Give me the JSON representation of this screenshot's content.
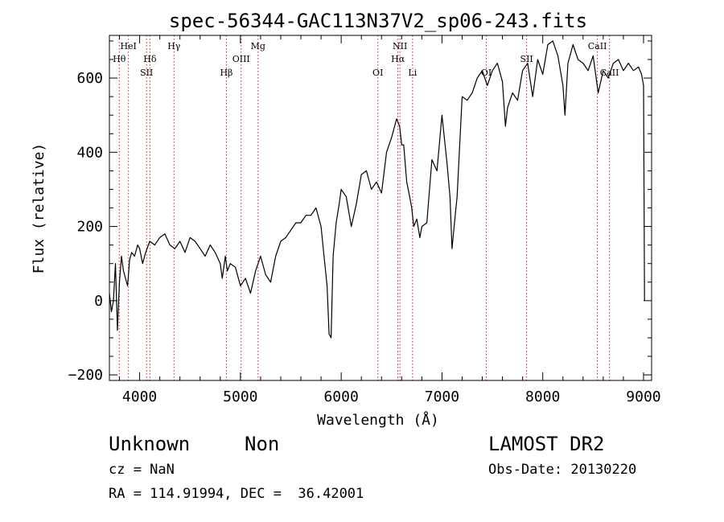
{
  "chart_data": {
    "type": "line",
    "title": "spec-56344-GAC113N37V2_sp06-243.fits",
    "xlabel": "Wavelength (Å)",
    "ylabel": "Flux (relative)",
    "xlim": [
      3700,
      9080
    ],
    "ylim": [
      -215,
      715
    ],
    "xticks": [
      4000,
      5000,
      6000,
      7000,
      8000,
      9000
    ],
    "yticks": [
      -200,
      0,
      200,
      400,
      600
    ],
    "xtick_labels": [
      "4000",
      "5000",
      "6000",
      "7000",
      "8000",
      "9000"
    ],
    "ytick_labels": [
      "−200",
      "0",
      "200",
      "400",
      "600"
    ],
    "grid": false,
    "line_color": "#000000",
    "marker_color": "#cc2222",
    "series": [
      {
        "x": [
          3700,
          3720,
          3740,
          3760,
          3780,
          3800,
          3820,
          3840,
          3860,
          3880,
          3900,
          3920,
          3950,
          3980,
          4000,
          4030,
          4060,
          4100,
          4150,
          4200,
          4250,
          4300,
          4350,
          4400,
          4450,
          4500,
          4550,
          4600,
          4650,
          4700,
          4750,
          4800,
          4820,
          4850,
          4870,
          4900,
          4950,
          5000,
          5050,
          5100,
          5150,
          5200,
          5250,
          5300,
          5350,
          5400,
          5450,
          5500,
          5550,
          5600,
          5650,
          5700,
          5750,
          5800,
          5830,
          5860,
          5880,
          5900,
          5920,
          5950,
          5980,
          6000,
          6050,
          6100,
          6150,
          6200,
          6250,
          6300,
          6350,
          6400,
          6450,
          6500,
          6550,
          6580,
          6600,
          6620,
          6650,
          6680,
          6700,
          6720,
          6750,
          6780,
          6800,
          6850,
          6900,
          6950,
          7000,
          7050,
          7080,
          7100,
          7120,
          7150,
          7200,
          7250,
          7300,
          7350,
          7400,
          7450,
          7500,
          7550,
          7600,
          7630,
          7650,
          7700,
          7750,
          7800,
          7850,
          7900,
          7950,
          8000,
          8050,
          8100,
          8150,
          8200,
          8220,
          8250,
          8300,
          8350,
          8400,
          8450,
          8500,
          8550,
          8600,
          8650,
          8700,
          8750,
          8800,
          8850,
          8900,
          8950,
          8980,
          9000,
          9010
        ],
        "y": [
          20,
          -30,
          0,
          100,
          -80,
          50,
          120,
          80,
          60,
          40,
          110,
          130,
          120,
          150,
          140,
          100,
          130,
          160,
          150,
          170,
          180,
          150,
          140,
          160,
          130,
          170,
          160,
          140,
          120,
          150,
          130,
          100,
          60,
          120,
          80,
          100,
          90,
          40,
          60,
          20,
          80,
          120,
          70,
          50,
          120,
          160,
          170,
          190,
          210,
          210,
          230,
          230,
          250,
          200,
          120,
          40,
          -90,
          -100,
          120,
          210,
          260,
          300,
          280,
          200,
          260,
          340,
          350,
          300,
          320,
          290,
          400,
          440,
          490,
          470,
          420,
          420,
          320,
          280,
          250,
          200,
          220,
          170,
          200,
          210,
          380,
          350,
          500,
          370,
          280,
          140,
          200,
          280,
          550,
          540,
          560,
          600,
          620,
          580,
          620,
          640,
          590,
          470,
          520,
          560,
          540,
          620,
          640,
          550,
          650,
          610,
          690,
          700,
          660,
          580,
          500,
          640,
          690,
          650,
          640,
          620,
          660,
          560,
          620,
          600,
          640,
          650,
          620,
          640,
          620,
          630,
          610,
          580,
          0
        ]
      }
    ],
    "line_markers": [
      {
        "label": "Hθ",
        "x": 3798,
        "row": 2
      },
      {
        "label": "HeI",
        "x": 3889,
        "row": 1
      },
      {
        "label": "Hδ",
        "x": 4102,
        "row": 2
      },
      {
        "label": "SII",
        "x": 4069,
        "row": 3
      },
      {
        "label": "Hγ",
        "x": 4341,
        "row": 1
      },
      {
        "label": "Hβ",
        "x": 4861,
        "row": 3
      },
      {
        "label": "OIII",
        "x": 5007,
        "row": 2
      },
      {
        "label": "Mg",
        "x": 5175,
        "row": 1
      },
      {
        "label": "OI",
        "x": 6364,
        "row": 3
      },
      {
        "label": "NII",
        "x": 6583,
        "row": 1
      },
      {
        "label": "Hα",
        "x": 6563,
        "row": 2
      },
      {
        "label": "Li",
        "x": 6708,
        "row": 3
      },
      {
        "label": "OI",
        "x": 7440,
        "row": 3
      },
      {
        "label": "SII",
        "x": 7840,
        "row": 2
      },
      {
        "label": "CaII",
        "x": 8542,
        "row": 1
      },
      {
        "label": "CaII",
        "x": 8662,
        "row": 3
      }
    ]
  },
  "info": {
    "class": "Unknown",
    "subclass": "Non",
    "survey": "LAMOST DR2",
    "cz": "cz = NaN",
    "obs_date": "Obs-Date: 20130220",
    "coords": "RA = 114.91994, DEC =  36.42001"
  }
}
